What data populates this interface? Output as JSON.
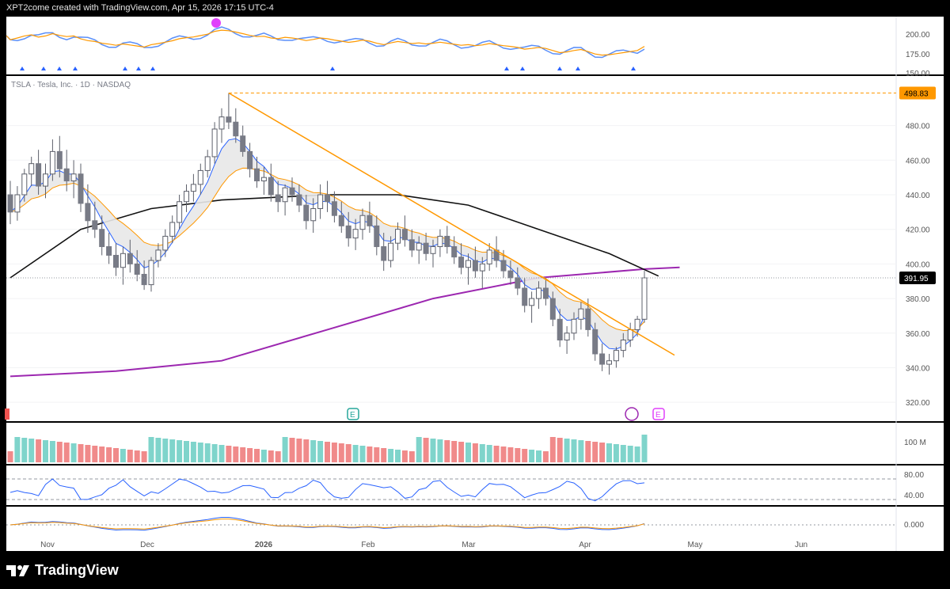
{
  "header": {
    "caption": "XPT2come created with TradingView.com, Apr 15, 2026 17:15 UTC-4"
  },
  "symbol_label": "TSLA · Tesla, Inc. · 1D · NASDAQ",
  "branding": {
    "name": "TradingView"
  },
  "chart_data": {
    "type": "candlestick",
    "symbol": "TSLA",
    "interval": "1D",
    "exchange": "NASDAQ",
    "price_axis": {
      "min": 310,
      "max": 505,
      "ticks": [
        480,
        460,
        440,
        420,
        400,
        380,
        360,
        340,
        320
      ]
    },
    "time_axis_labels": [
      "Nov",
      "Dec",
      "2026",
      "Feb",
      "Mar",
      "Apr",
      "May",
      "Jun"
    ],
    "price_labels": [
      {
        "value": 498.83,
        "text": "498.83",
        "color": "#ff9800"
      },
      {
        "value": 391.95,
        "text": "391.95",
        "color": "#ffffff"
      }
    ],
    "candles": [
      [
        440,
        448,
        423,
        430
      ],
      [
        430,
        445,
        425,
        440
      ],
      [
        440,
        455,
        436,
        452
      ],
      [
        452,
        462,
        445,
        458
      ],
      [
        458,
        466,
        440,
        445
      ],
      [
        445,
        458,
        438,
        452
      ],
      [
        452,
        472,
        448,
        465
      ],
      [
        465,
        474,
        450,
        455
      ],
      [
        455,
        466,
        442,
        448
      ],
      [
        448,
        460,
        438,
        452
      ],
      [
        452,
        458,
        430,
        435
      ],
      [
        435,
        446,
        418,
        425
      ],
      [
        425,
        436,
        415,
        420
      ],
      [
        420,
        428,
        405,
        410
      ],
      [
        410,
        418,
        400,
        405
      ],
      [
        405,
        412,
        393,
        398
      ],
      [
        398,
        410,
        388,
        406
      ],
      [
        406,
        414,
        395,
        400
      ],
      [
        400,
        408,
        390,
        394
      ],
      [
        394,
        402,
        385,
        388
      ],
      [
        388,
        404,
        384,
        402
      ],
      [
        402,
        412,
        398,
        408
      ],
      [
        408,
        420,
        404,
        416
      ],
      [
        416,
        428,
        412,
        424
      ],
      [
        424,
        440,
        420,
        436
      ],
      [
        436,
        446,
        430,
        442
      ],
      [
        442,
        452,
        436,
        446
      ],
      [
        446,
        458,
        440,
        454
      ],
      [
        454,
        466,
        450,
        462
      ],
      [
        462,
        482,
        458,
        478
      ],
      [
        478,
        490,
        470,
        485
      ],
      [
        485,
        498.83,
        478,
        482
      ],
      [
        482,
        490,
        470,
        474
      ],
      [
        474,
        480,
        462,
        465
      ],
      [
        465,
        470,
        450,
        455
      ],
      [
        455,
        462,
        444,
        448
      ],
      [
        448,
        456,
        440,
        450
      ],
      [
        450,
        458,
        436,
        440
      ],
      [
        440,
        448,
        430,
        436
      ],
      [
        436,
        446,
        428,
        444
      ],
      [
        444,
        450,
        436,
        440
      ],
      [
        440,
        446,
        430,
        434
      ],
      [
        434,
        440,
        420,
        425
      ],
      [
        425,
        438,
        418,
        432
      ],
      [
        432,
        446,
        426,
        440
      ],
      [
        440,
        448,
        430,
        436
      ],
      [
        436,
        442,
        424,
        428
      ],
      [
        428,
        436,
        418,
        422
      ],
      [
        422,
        430,
        410,
        415
      ],
      [
        415,
        426,
        408,
        420
      ],
      [
        420,
        432,
        414,
        428
      ],
      [
        428,
        436,
        418,
        422
      ],
      [
        422,
        428,
        405,
        410
      ],
      [
        410,
        418,
        396,
        402
      ],
      [
        402,
        416,
        398,
        412
      ],
      [
        412,
        424,
        408,
        420
      ],
      [
        420,
        428,
        410,
        414
      ],
      [
        414,
        420,
        404,
        408
      ],
      [
        408,
        416,
        400,
        412
      ],
      [
        412,
        418,
        402,
        406
      ],
      [
        406,
        414,
        398,
        410
      ],
      [
        410,
        420,
        404,
        416
      ],
      [
        416,
        422,
        406,
        410
      ],
      [
        410,
        416,
        400,
        404
      ],
      [
        404,
        412,
        394,
        398
      ],
      [
        398,
        406,
        388,
        402
      ],
      [
        402,
        410,
        392,
        396
      ],
      [
        396,
        404,
        386,
        400
      ],
      [
        400,
        412,
        396,
        408
      ],
      [
        408,
        416,
        398,
        402
      ],
      [
        402,
        408,
        392,
        396
      ],
      [
        396,
        402,
        388,
        392
      ],
      [
        392,
        398,
        382,
        386
      ],
      [
        386,
        392,
        372,
        376
      ],
      [
        376,
        384,
        366,
        380
      ],
      [
        380,
        390,
        374,
        386
      ],
      [
        386,
        392,
        376,
        380
      ],
      [
        380,
        384,
        364,
        368
      ],
      [
        368,
        374,
        352,
        356
      ],
      [
        356,
        364,
        348,
        360
      ],
      [
        360,
        372,
        356,
        368
      ],
      [
        368,
        378,
        362,
        374
      ],
      [
        374,
        380,
        358,
        362
      ],
      [
        362,
        366,
        344,
        348
      ],
      [
        348,
        354,
        338,
        342
      ],
      [
        342,
        348,
        336,
        344
      ],
      [
        344,
        352,
        340,
        350
      ],
      [
        350,
        360,
        346,
        356
      ],
      [
        356,
        366,
        352,
        362
      ],
      [
        362,
        370,
        358,
        368
      ],
      [
        368,
        396,
        366,
        391.95
      ]
    ],
    "overlays": [
      {
        "name": "EMA fast",
        "color": "#2962ff"
      },
      {
        "name": "EMA slow",
        "color": "#ff9800"
      },
      {
        "name": "SMA 50",
        "color": "#000000"
      },
      {
        "name": "SMA 200",
        "color": "#9c27b0"
      }
    ],
    "trendline": {
      "from": [
        31,
        498.83
      ],
      "to": [
        100,
        366
      ]
    },
    "sma200": [
      [
        0,
        335
      ],
      [
        15,
        338
      ],
      [
        30,
        344
      ],
      [
        45,
        362
      ],
      [
        60,
        380
      ],
      [
        75,
        392
      ],
      [
        90,
        397
      ],
      [
        95,
        398
      ]
    ],
    "sma50": [
      [
        0,
        392
      ],
      [
        10,
        420
      ],
      [
        20,
        432
      ],
      [
        30,
        437
      ],
      [
        45,
        440
      ],
      [
        55,
        440
      ],
      [
        65,
        434
      ],
      [
        75,
        420
      ],
      [
        85,
        406
      ],
      [
        92,
        393
      ]
    ],
    "volume_axis": {
      "ticks": [
        "100 M"
      ]
    },
    "rsi_axis": {
      "ticks": [
        "80.00",
        "40.00"
      ]
    },
    "macd_axis": {
      "ticks": [
        "0.000"
      ]
    },
    "top_indicator_axis": {
      "ticks": [
        "200.00",
        "175.00",
        "150.00"
      ]
    }
  }
}
